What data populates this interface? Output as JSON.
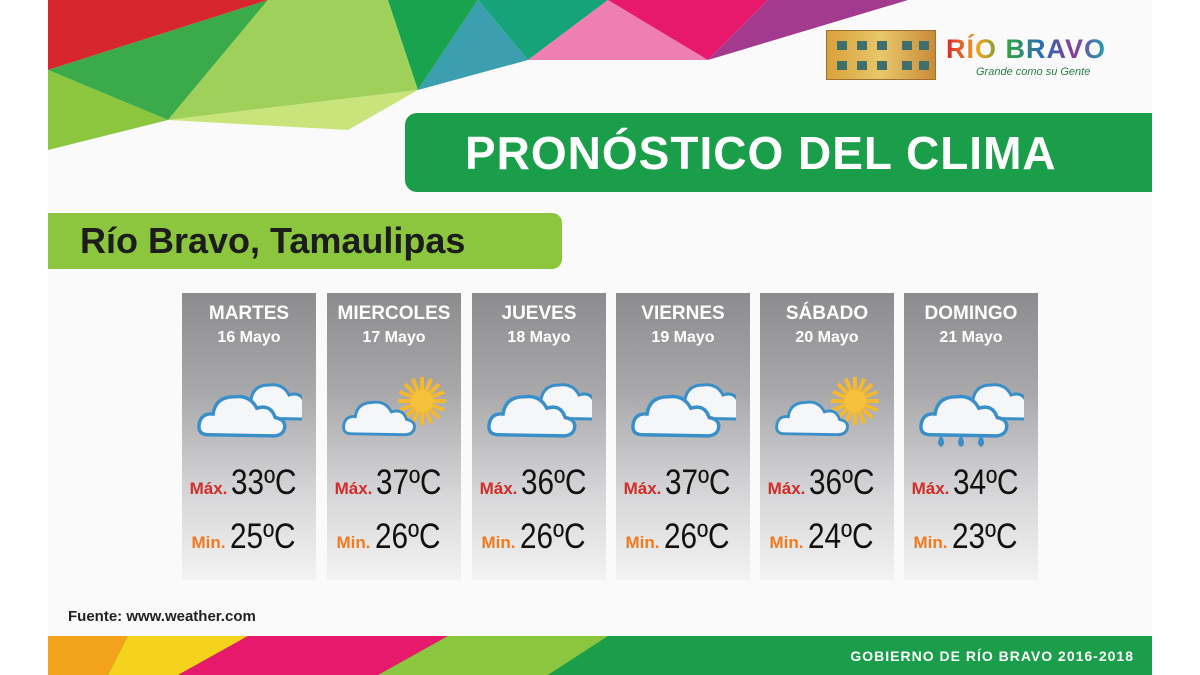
{
  "logo": {
    "name": "RÍO BRAVO",
    "tagline": "Grande como su Gente"
  },
  "title": "PRONÓSTICO DEL CLIMA",
  "location": "Río Bravo, Tamaulipas",
  "labels": {
    "max": "Máx.",
    "min": "Min."
  },
  "colors": {
    "title_bar": "#1a9e4a",
    "location_bar": "#8cc63f",
    "max_label": "#d32a2a",
    "min_label": "#f07a1e"
  },
  "forecast": [
    {
      "day": "MARTES",
      "date": "16 Mayo",
      "icon": "cloudy-icon",
      "max": "33ºC",
      "min": "25ºC"
    },
    {
      "day": "MIERCOLES",
      "date": "17 Mayo",
      "icon": "partly-sunny-icon",
      "max": "37ºC",
      "min": "26ºC"
    },
    {
      "day": "JUEVES",
      "date": "18 Mayo",
      "icon": "cloudy-icon",
      "max": "36ºC",
      "min": "26ºC"
    },
    {
      "day": "VIERNES",
      "date": "19 Mayo",
      "icon": "cloudy-icon",
      "max": "37ºC",
      "min": "26ºC"
    },
    {
      "day": "SÁBADO",
      "date": "20 Mayo",
      "icon": "partly-sunny-icon",
      "max": "36ºC",
      "min": "24ºC"
    },
    {
      "day": "DOMINGO",
      "date": "21 Mayo",
      "icon": "rain-icon",
      "max": "34ºC",
      "min": "23ºC"
    }
  ],
  "source": "Fuente:  www.weather.com",
  "footer": "GOBIERNO DE RÍO BRAVO  2016-2018"
}
